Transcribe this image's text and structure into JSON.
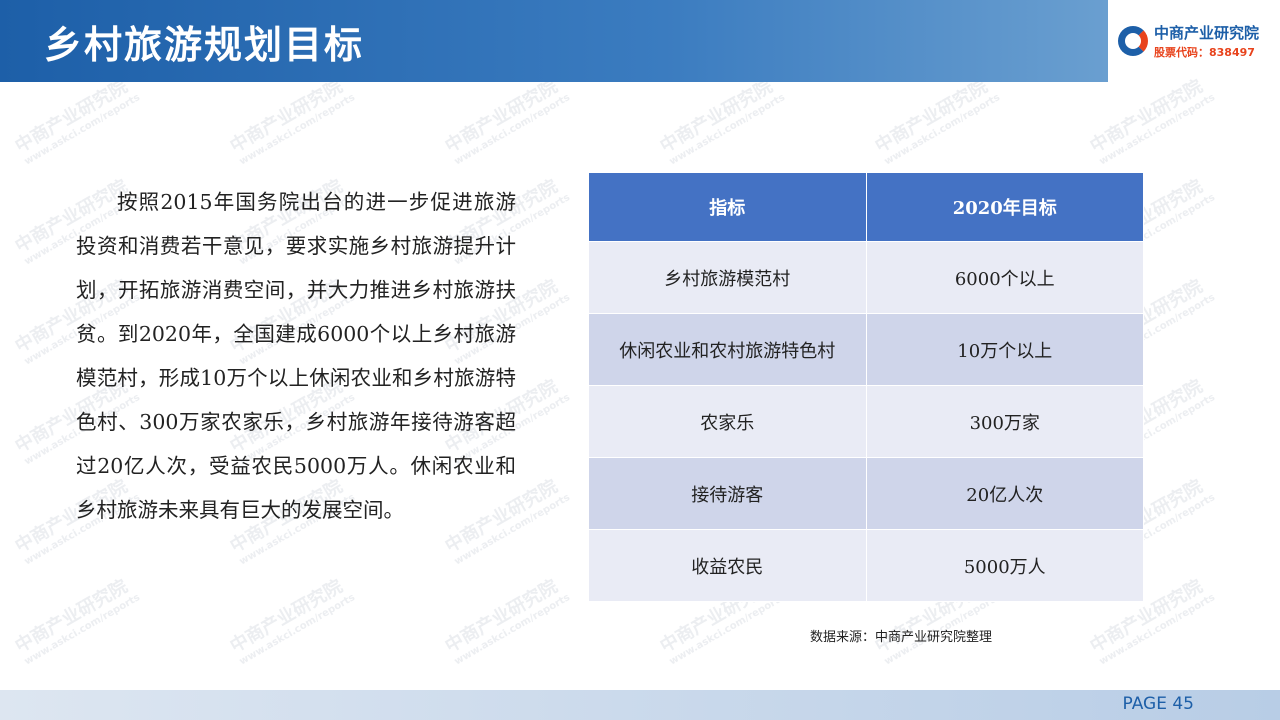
{
  "header": {
    "title": "乡村旅游规划目标",
    "logo": {
      "name": "中商产业研究院",
      "code": "股票代码：838497"
    }
  },
  "watermark": {
    "name": "中商产业研究院",
    "url": "www.askci.com/reports"
  },
  "paragraph": "按照2015年国务院出台的进一步促进旅游投资和消费若干意见，要求实施乡村旅游提升计划，开拓旅游消费空间，并大力推进乡村旅游扶贫。到2020年，全国建成6000个以上乡村旅游模范村，形成10万个以上休闲农业和乡村旅游特色村、300万家农家乐，乡村旅游年接待游客超过20亿人次，受益农民5000万人。休闲农业和乡村旅游未来具有巨大的发展空间。",
  "table": {
    "header": [
      "指标",
      "2020年目标"
    ],
    "rows": [
      [
        "乡村旅游模范村",
        "6000个以上"
      ],
      [
        "休闲农业和农村旅游特色村",
        "10万个以上"
      ],
      [
        "农家乐",
        "300万家"
      ],
      [
        "接待游客",
        "20亿人次"
      ],
      [
        "收益农民",
        "5000万人"
      ]
    ]
  },
  "source": "数据来源：中商产业研究院整理",
  "footer": {
    "page": "PAGE 45"
  }
}
